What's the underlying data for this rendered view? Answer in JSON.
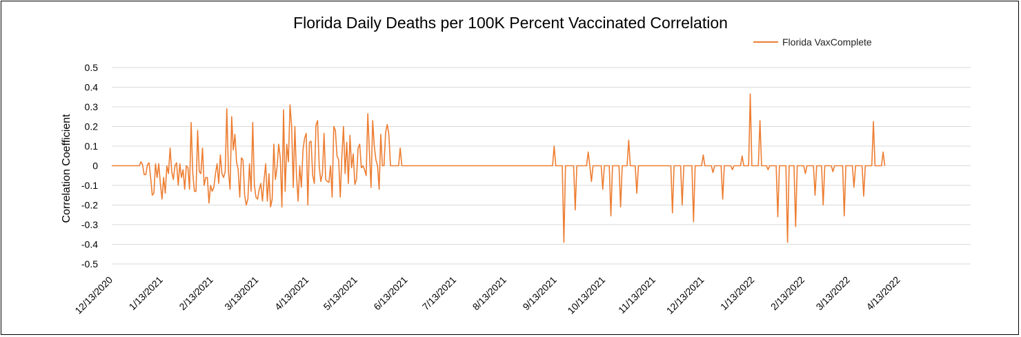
{
  "chart_data": {
    "type": "line",
    "title": "Florida Daily Deaths per 100K Percent Vaccinated Correlation",
    "xlabel": "",
    "ylabel": "Correlation Coefficient",
    "ylim": [
      -0.5,
      0.5
    ],
    "yticks": [
      "0.5",
      "0.4",
      "0.3",
      "0.2",
      "0.1",
      "0",
      "-0.1",
      "-0.2",
      "-0.3",
      "-0.4",
      "-0.5"
    ],
    "ytick_values": [
      0.5,
      0.4,
      0.3,
      0.2,
      0.1,
      0,
      -0.1,
      -0.2,
      -0.3,
      -0.4,
      -0.5
    ],
    "x_start": "12/13/2020",
    "x_end_day": 530,
    "xticks": [
      {
        "label": "12/13/2020",
        "day": 0
      },
      {
        "label": "1/13/2021",
        "day": 31
      },
      {
        "label": "2/13/2021",
        "day": 62
      },
      {
        "label": "3/13/2021",
        "day": 90
      },
      {
        "label": "4/13/2021",
        "day": 121
      },
      {
        "label": "5/13/2021",
        "day": 151
      },
      {
        "label": "6/13/2021",
        "day": 182
      },
      {
        "label": "7/13/2021",
        "day": 212
      },
      {
        "label": "8/13/2021",
        "day": 243
      },
      {
        "label": "9/13/2021",
        "day": 274
      },
      {
        "label": "10/13/2021",
        "day": 304
      },
      {
        "label": "11/13/2021",
        "day": 335
      },
      {
        "label": "12/13/2021",
        "day": 365
      },
      {
        "label": "1/13/2022",
        "day": 396
      },
      {
        "label": "2/13/2022",
        "day": 427
      },
      {
        "label": "3/13/2022",
        "day": 455
      },
      {
        "label": "4/13/2022",
        "day": 486
      }
    ],
    "grid": true,
    "legend_position": "top-right",
    "series": [
      {
        "name": "Florida VaxComplete",
        "color": "#ED7D31",
        "points": [
          [
            0,
            0
          ],
          [
            17,
            0
          ],
          [
            18,
            0.02
          ],
          [
            19,
            0.005
          ],
          [
            20,
            -0.045
          ],
          [
            21,
            -0.045
          ],
          [
            22,
            0.005
          ],
          [
            23,
            0.015
          ],
          [
            24,
            -0.06
          ],
          [
            25,
            -0.15
          ],
          [
            26,
            -0.14
          ],
          [
            27,
            0.01
          ],
          [
            28,
            -0.06
          ],
          [
            29,
            0.01
          ],
          [
            30,
            -0.09
          ],
          [
            31,
            -0.17
          ],
          [
            32,
            -0.06
          ],
          [
            33,
            -0.14
          ],
          [
            34,
            0.0
          ],
          [
            35,
            -0.04
          ],
          [
            36,
            0.09
          ],
          [
            37,
            -0.03
          ],
          [
            38,
            -0.07
          ],
          [
            39,
            0.0
          ],
          [
            40,
            0.015
          ],
          [
            41,
            -0.1
          ],
          [
            42,
            0.01
          ],
          [
            43,
            -0.06
          ],
          [
            44,
            -0.02
          ],
          [
            45,
            -0.12
          ],
          [
            46,
            0.0
          ],
          [
            47,
            -0.01
          ],
          [
            48,
            -0.12
          ],
          [
            49,
            0.22
          ],
          [
            50,
            -0.04
          ],
          [
            51,
            -0.13
          ],
          [
            52,
            -0.13
          ],
          [
            53,
            0.18
          ],
          [
            54,
            -0.03
          ],
          [
            55,
            -0.04
          ],
          [
            56,
            0.09
          ],
          [
            57,
            -0.1
          ],
          [
            58,
            -0.06
          ],
          [
            59,
            -0.06
          ],
          [
            60,
            -0.19
          ],
          [
            61,
            -0.1
          ],
          [
            62,
            -0.13
          ],
          [
            63,
            -0.11
          ],
          [
            64,
            -0.04
          ],
          [
            65,
            0.01
          ],
          [
            66,
            -0.09
          ],
          [
            67,
            0.055
          ],
          [
            68,
            -0.04
          ],
          [
            69,
            -0.06
          ],
          [
            70,
            -0.03
          ],
          [
            71,
            0.29
          ],
          [
            72,
            -0.03
          ],
          [
            73,
            -0.12
          ],
          [
            74,
            0.25
          ],
          [
            75,
            0.08
          ],
          [
            76,
            0.16
          ],
          [
            77,
            0.02
          ],
          [
            78,
            -0.02
          ],
          [
            79,
            -0.16
          ],
          [
            80,
            0.04
          ],
          [
            81,
            0.03
          ],
          [
            82,
            -0.15
          ],
          [
            83,
            -0.2
          ],
          [
            84,
            -0.17
          ],
          [
            85,
            0.01
          ],
          [
            86,
            -0.13
          ],
          [
            87,
            0.22
          ],
          [
            88,
            -0.1
          ],
          [
            89,
            -0.16
          ],
          [
            90,
            -0.17
          ],
          [
            91,
            -0.12
          ],
          [
            92,
            -0.09
          ],
          [
            93,
            -0.18
          ],
          [
            94,
            -0.07
          ],
          [
            95,
            0.01
          ],
          [
            96,
            -0.18
          ],
          [
            97,
            -0.04
          ],
          [
            98,
            -0.21
          ],
          [
            99,
            -0.17
          ],
          [
            100,
            0.11
          ],
          [
            101,
            -0.07
          ],
          [
            102,
            -0.01
          ],
          [
            103,
            0.11
          ],
          [
            104,
            0.04
          ],
          [
            105,
            -0.21
          ],
          [
            106,
            0.285
          ],
          [
            107,
            -0.13
          ],
          [
            108,
            0.11
          ],
          [
            109,
            0.02
          ],
          [
            110,
            0.31
          ],
          [
            111,
            0.2
          ],
          [
            112,
            -0.11
          ],
          [
            113,
            0.2
          ],
          [
            114,
            -0.05
          ],
          [
            115,
            -0.18
          ],
          [
            116,
            0.0
          ],
          [
            117,
            -0.11
          ],
          [
            118,
            0.08
          ],
          [
            119,
            0.14
          ],
          [
            120,
            0.165
          ],
          [
            121,
            -0.2
          ],
          [
            122,
            0.12
          ],
          [
            123,
            0.125
          ],
          [
            124,
            -0.05
          ],
          [
            125,
            -0.09
          ],
          [
            126,
            0.205
          ],
          [
            127,
            0.23
          ],
          [
            128,
            0.0
          ],
          [
            129,
            -0.08
          ],
          [
            130,
            -0.04
          ],
          [
            131,
            0.165
          ],
          [
            132,
            -0.07
          ],
          [
            133,
            -0.08
          ],
          [
            134,
            -0.085
          ],
          [
            135,
            0.0
          ],
          [
            136,
            -0.16
          ],
          [
            137,
            0.2
          ],
          [
            138,
            0.18
          ],
          [
            139,
            0.05
          ],
          [
            140,
            0.03
          ],
          [
            141,
            -0.16
          ],
          [
            142,
            0.05
          ],
          [
            143,
            0.2
          ],
          [
            144,
            -0.04
          ],
          [
            145,
            0.12
          ],
          [
            146,
            -0.09
          ],
          [
            147,
            0.155
          ],
          [
            148,
            -0.01
          ],
          [
            149,
            0.06
          ],
          [
            150,
            -0.095
          ],
          [
            151,
            -0.07
          ],
          [
            152,
            0.09
          ],
          [
            153,
            0.11
          ],
          [
            154,
            -0.01
          ],
          [
            155,
            0.0
          ],
          [
            156,
            -0.02
          ],
          [
            157,
            -0.05
          ],
          [
            158,
            0.265
          ],
          [
            159,
            0.07
          ],
          [
            160,
            -0.11
          ],
          [
            161,
            0.23
          ],
          [
            162,
            0.1
          ],
          [
            163,
            0.03
          ],
          [
            164,
            0.0
          ],
          [
            165,
            -0.12
          ],
          [
            166,
            0.16
          ],
          [
            167,
            0.0
          ],
          [
            168,
            0.0
          ],
          [
            169,
            0.17
          ],
          [
            170,
            0.21
          ],
          [
            171,
            0.16
          ],
          [
            172,
            0.0
          ],
          [
            173,
            0.0
          ],
          [
            177,
            0.0
          ],
          [
            178,
            0.09
          ],
          [
            179,
            0.0
          ],
          [
            272,
            0.0
          ],
          [
            273,
            0.1
          ],
          [
            274,
            0.0
          ],
          [
            278,
            0.0
          ],
          [
            279,
            -0.39
          ],
          [
            280,
            0.0
          ],
          [
            285,
            0.0
          ],
          [
            286,
            -0.225
          ],
          [
            287,
            0.0
          ],
          [
            293,
            0.0
          ],
          [
            294,
            0.07
          ],
          [
            295,
            0.0
          ],
          [
            296,
            -0.08
          ],
          [
            297,
            0.0
          ],
          [
            302,
            0.0
          ],
          [
            303,
            -0.12
          ],
          [
            304,
            0.0
          ],
          [
            307,
            0.0
          ],
          [
            308,
            -0.255
          ],
          [
            309,
            0.0
          ],
          [
            313,
            0.0
          ],
          [
            314,
            -0.21
          ],
          [
            315,
            0.0
          ],
          [
            318,
            0.0
          ],
          [
            319,
            0.13
          ],
          [
            320,
            0.0
          ],
          [
            323,
            0.0
          ],
          [
            324,
            -0.14
          ],
          [
            325,
            0.0
          ],
          [
            345,
            0.0
          ],
          [
            346,
            -0.24
          ],
          [
            347,
            0.0
          ],
          [
            351,
            0.0
          ],
          [
            352,
            -0.2
          ],
          [
            353,
            0.0
          ],
          [
            358,
            0.0
          ],
          [
            359,
            -0.285
          ],
          [
            360,
            0.0
          ],
          [
            364,
            0.0
          ],
          [
            365,
            0.055
          ],
          [
            366,
            0.0
          ],
          [
            370,
            0.0
          ],
          [
            371,
            -0.035
          ],
          [
            372,
            0.0
          ],
          [
            376,
            0.0
          ],
          [
            377,
            -0.17
          ],
          [
            378,
            0.0
          ],
          [
            382,
            0.0
          ],
          [
            383,
            -0.02
          ],
          [
            384,
            0.0
          ],
          [
            388,
            0.0
          ],
          [
            389,
            0.05
          ],
          [
            390,
            0.0
          ],
          [
            393,
            0.0
          ],
          [
            394,
            0.365
          ],
          [
            395,
            0.0
          ],
          [
            399,
            0.0
          ],
          [
            400,
            0.23
          ],
          [
            401,
            0.0
          ],
          [
            404,
            0.0
          ],
          [
            405,
            -0.02
          ],
          [
            406,
            0.0
          ],
          [
            410,
            0.0
          ],
          [
            411,
            -0.26
          ],
          [
            412,
            0.0
          ],
          [
            416,
            0.0
          ],
          [
            417,
            -0.39
          ],
          [
            418,
            0.0
          ],
          [
            421,
            0.0
          ],
          [
            422,
            -0.31
          ],
          [
            423,
            0.0
          ],
          [
            427,
            0.0
          ],
          [
            428,
            -0.04
          ],
          [
            429,
            0.0
          ],
          [
            433,
            0.0
          ],
          [
            434,
            -0.15
          ],
          [
            435,
            0.0
          ],
          [
            438,
            0.0
          ],
          [
            439,
            -0.2
          ],
          [
            440,
            0.0
          ],
          [
            444,
            0.0
          ],
          [
            445,
            -0.03
          ],
          [
            446,
            0.0
          ],
          [
            451,
            0.0
          ],
          [
            452,
            -0.255
          ],
          [
            453,
            0.0
          ],
          [
            457,
            0.0
          ],
          [
            458,
            -0.11
          ],
          [
            459,
            0.0
          ],
          [
            463,
            0.0
          ],
          [
            464,
            -0.155
          ],
          [
            465,
            0.0
          ],
          [
            469,
            0.0
          ],
          [
            470,
            0.225
          ],
          [
            471,
            0.0
          ],
          [
            475,
            0.0
          ],
          [
            476,
            0.07
          ],
          [
            477,
            0.0
          ]
        ]
      }
    ]
  }
}
